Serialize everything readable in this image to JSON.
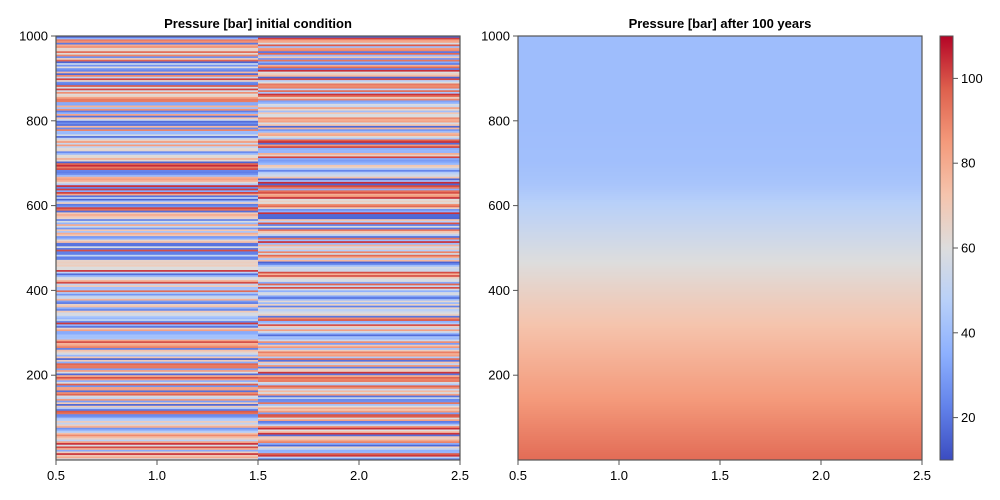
{
  "chart_data": [
    {
      "type": "heatmap",
      "title": "Pressure [bar] initial condition",
      "xlabel": "",
      "ylabel": "",
      "xlim": [
        0.5,
        2.5
      ],
      "ylim": [
        0,
        1000
      ],
      "x_ticks": [
        "0.5",
        "1.0",
        "1.5",
        "2.0",
        "2.5"
      ],
      "y_ticks": [
        "200",
        "400",
        "600",
        "800",
        "1000"
      ],
      "columns": [
        1,
        2
      ],
      "rows": 250,
      "value_range": [
        10,
        110
      ],
      "pattern": "random horizontal stripes per column",
      "seed_col1": 17,
      "seed_col2": 91
    },
    {
      "type": "heatmap",
      "title": "Pressure [bar] after 100 years",
      "xlabel": "",
      "ylabel": "",
      "xlim": [
        0.5,
        2.5
      ],
      "ylim": [
        0,
        1000
      ],
      "x_ticks": [
        "0.5",
        "1.0",
        "1.5",
        "2.0",
        "2.5"
      ],
      "y_ticks": [
        "200",
        "400",
        "600",
        "800",
        "1000"
      ],
      "profile_depth": [
        0,
        100,
        200,
        300,
        400,
        500,
        600,
        650,
        700,
        800,
        900,
        1000
      ],
      "profile_value": [
        95,
        88,
        81,
        74,
        66,
        57,
        48,
        43,
        41,
        40,
        40,
        40
      ]
    }
  ],
  "colorbar": {
    "range": [
      10,
      110
    ],
    "ticks": [
      "20",
      "40",
      "60",
      "80",
      "100"
    ],
    "tick_values": [
      20,
      40,
      60,
      80,
      100
    ],
    "colormap": "coolwarm"
  }
}
